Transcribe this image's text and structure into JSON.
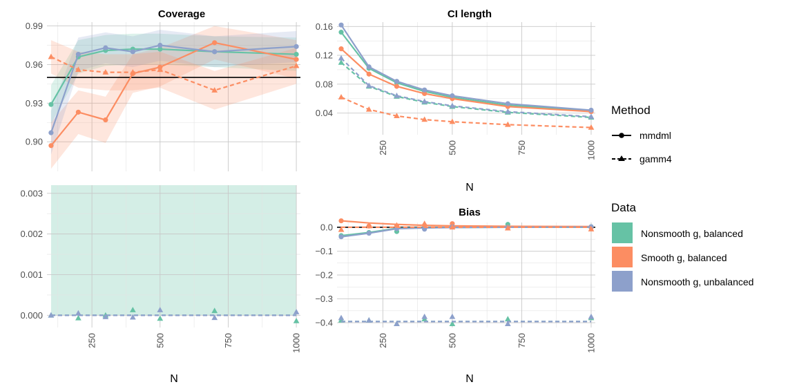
{
  "colors": {
    "nonsmooth_balanced": "#66C2A5",
    "smooth_balanced": "#FC8D62",
    "nonsmooth_unbalanced": "#8DA0CB"
  },
  "legend": {
    "method_title": "Method",
    "method_items": [
      {
        "label": "mmdml",
        "linetype": "solid",
        "shape": "circle"
      },
      {
        "label": "gamm4",
        "linetype": "dashed",
        "shape": "triangle"
      }
    ],
    "data_title": "Data",
    "data_items": [
      {
        "label": "Nonsmooth g, balanced",
        "color_key": "nonsmooth_balanced"
      },
      {
        "label": "Smooth g, balanced",
        "color_key": "smooth_balanced"
      },
      {
        "label": "Nonsmooth g, unbalanced",
        "color_key": "nonsmooth_unbalanced"
      }
    ]
  },
  "chart_data": [
    {
      "id": "coverage",
      "type": "line",
      "title": "Coverage",
      "xlabel": "",
      "ylabel": "",
      "xlim": [
        85,
        1015
      ],
      "ylim": [
        0.877,
        0.993
      ],
      "xticks": [
        250,
        500,
        750,
        1000
      ],
      "show_xticks": false,
      "yticks": [
        0.9,
        0.93,
        0.96,
        0.99
      ],
      "ytick_labels": [
        "0.90",
        "0.93",
        "0.96",
        "0.99"
      ],
      "hline": 0.95,
      "x": [
        100,
        200,
        300,
        400,
        500,
        700,
        1000
      ],
      "series": [
        {
          "key": "nonsmooth_balanced",
          "method": "mmdml",
          "values": [
            0.929,
            0.966,
            0.971,
            0.972,
            0.972,
            0.97,
            0.968
          ],
          "band": [
            [
              0.914,
              0.944
            ],
            [
              0.953,
              0.979
            ],
            [
              0.959,
              0.983
            ],
            [
              0.96,
              0.984
            ],
            [
              0.96,
              0.984
            ],
            [
              0.958,
              0.982
            ],
            [
              0.955,
              0.981
            ]
          ]
        },
        {
          "key": "smooth_balanced",
          "method": "mmdml",
          "values": [
            0.897,
            0.923,
            0.917,
            0.953,
            0.958,
            0.977,
            0.964
          ],
          "band": [
            [
              0.879,
              0.915
            ],
            [
              0.906,
              0.94
            ],
            [
              0.899,
              0.935
            ],
            [
              0.938,
              0.968
            ],
            [
              0.943,
              0.973
            ],
            [
              0.964,
              0.99
            ],
            [
              0.949,
              0.979
            ]
          ]
        },
        {
          "key": "nonsmooth_unbalanced",
          "method": "mmdml",
          "values": [
            0.907,
            0.968,
            0.973,
            0.97,
            0.975,
            0.97,
            0.974
          ],
          "band": [
            [
              0.89,
              0.924
            ],
            [
              0.955,
              0.981
            ],
            [
              0.961,
              0.985
            ],
            [
              0.958,
              0.982
            ],
            [
              0.963,
              0.987
            ],
            [
              0.958,
              0.982
            ],
            [
              0.962,
              0.986
            ]
          ]
        },
        {
          "key": "smooth_balanced",
          "method": "gamm4",
          "values": [
            0.966,
            0.956,
            0.954,
            0.954,
            0.956,
            0.94,
            0.959
          ],
          "band": [
            [
              0.953,
              0.979
            ],
            [
              0.942,
              0.97
            ],
            [
              0.94,
              0.968
            ],
            [
              0.94,
              0.968
            ],
            [
              0.942,
              0.97
            ],
            [
              0.925,
              0.955
            ],
            [
              0.945,
              0.973
            ]
          ]
        }
      ]
    },
    {
      "id": "ci_length",
      "type": "line",
      "title": "CI length",
      "xlabel": "N",
      "ylabel": "",
      "xlim": [
        85,
        1015
      ],
      "ylim": [
        0.01,
        0.166
      ],
      "xticks": [
        250,
        500,
        750,
        1000
      ],
      "show_xticks": true,
      "yticks": [
        0.04,
        0.08,
        0.12,
        0.16
      ],
      "ytick_labels": [
        "0.04",
        "0.08",
        "0.12",
        "0.16"
      ],
      "x": [
        100,
        200,
        300,
        400,
        500,
        700,
        1000
      ],
      "series": [
        {
          "key": "nonsmooth_balanced",
          "method": "mmdml",
          "values": [
            0.152,
            0.102,
            0.082,
            0.07,
            0.062,
            0.051,
            0.043
          ]
        },
        {
          "key": "smooth_balanced",
          "method": "mmdml",
          "values": [
            0.129,
            0.094,
            0.077,
            0.067,
            0.06,
            0.049,
            0.042
          ]
        },
        {
          "key": "nonsmooth_unbalanced",
          "method": "mmdml",
          "values": [
            0.162,
            0.104,
            0.084,
            0.072,
            0.064,
            0.053,
            0.044
          ]
        },
        {
          "key": "nonsmooth_balanced",
          "method": "gamm4",
          "values": [
            0.11,
            0.077,
            0.063,
            0.055,
            0.049,
            0.041,
            0.034
          ]
        },
        {
          "key": "smooth_balanced",
          "method": "gamm4",
          "values": [
            0.062,
            0.045,
            0.036,
            0.031,
            0.028,
            0.024,
            0.02
          ]
        },
        {
          "key": "nonsmooth_unbalanced",
          "method": "gamm4",
          "values": [
            0.116,
            0.078,
            0.064,
            0.056,
            0.05,
            0.042,
            0.035
          ]
        }
      ]
    },
    {
      "id": "coverage_zoom",
      "type": "line",
      "title": "",
      "xlabel": "N",
      "ylabel": "",
      "xlim": [
        85,
        1015
      ],
      "ylim": [
        -0.0003,
        0.0032
      ],
      "xticks": [
        250,
        500,
        750,
        1000
      ],
      "show_xticks": true,
      "yticks": [
        0.0,
        0.001,
        0.002,
        0.003
      ],
      "ytick_labels": [
        "0.000",
        "0.001",
        "0.002",
        "0.003"
      ],
      "shade": {
        "from": 0.0,
        "to": 0.0032,
        "color_key": "nonsmooth_balanced"
      },
      "x": [
        100,
        200,
        300,
        400,
        500,
        700,
        1000
      ],
      "series": [
        {
          "key": "nonsmooth_balanced",
          "method": "gamm4",
          "values": [
            0.0,
            0.0,
            0.0,
            0.0,
            0.0,
            0.0,
            0.0
          ],
          "points": [
            0.0,
            -7e-05,
            0.0,
            0.00013,
            -8e-05,
            0.00011,
            -0.00014
          ]
        },
        {
          "key": "nonsmooth_unbalanced",
          "method": "gamm4",
          "values": [
            0.0,
            0.0,
            0.0,
            0.0,
            0.0,
            0.0,
            0.0
          ],
          "points": [
            0.0,
            5e-05,
            -4e-05,
            -5e-05,
            0.00013,
            -6e-05,
            8e-05
          ]
        }
      ]
    },
    {
      "id": "bias",
      "type": "line",
      "title": "Bias",
      "xlabel": "N",
      "ylabel": "",
      "xlim": [
        85,
        1015
      ],
      "ylim": [
        -0.42,
        0.02
      ],
      "xticks": [
        250,
        500,
        750,
        1000
      ],
      "show_xticks": true,
      "yticks": [
        0.0,
        -0.1,
        -0.2,
        -0.3,
        -0.4
      ],
      "ytick_labels": [
        "0.0",
        "−0.1",
        "−0.2",
        "−0.3",
        "−0.4"
      ],
      "hline": 0.0,
      "x": [
        100,
        200,
        300,
        400,
        500,
        700,
        1000
      ],
      "series": [
        {
          "key": "nonsmooth_balanced",
          "method": "mmdml",
          "values": [
            -0.035,
            -0.022,
            -0.004,
            -0.002,
            -0.001,
            0.0,
            0.0
          ],
          "points": [
            -0.035,
            -0.022,
            -0.018,
            -0.005,
            0.002,
            0.012,
            0.002
          ]
        },
        {
          "key": "smooth_balanced",
          "method": "mmdml",
          "values": [
            0.027,
            0.018,
            0.012,
            0.008,
            0.006,
            0.004,
            0.003
          ],
          "points": [
            0.027,
            0.005,
            0.005,
            0.008,
            0.015,
            0.0,
            -0.002
          ]
        },
        {
          "key": "nonsmooth_unbalanced",
          "method": "mmdml",
          "values": [
            -0.04,
            -0.025,
            -0.006,
            -0.003,
            -0.001,
            0.0,
            0.001
          ],
          "points": [
            -0.04,
            -0.025,
            -0.006,
            -0.008,
            0.002,
            -0.001,
            0.002
          ]
        },
        {
          "key": "nonsmooth_balanced",
          "method": "gamm4",
          "values": [
            -0.395,
            -0.395,
            -0.395,
            -0.395,
            -0.395,
            -0.395,
            -0.395
          ],
          "points": [
            -0.39,
            -0.39,
            -0.405,
            -0.385,
            -0.405,
            -0.385,
            -0.38
          ]
        },
        {
          "key": "smooth_balanced",
          "method": "gamm4",
          "values": [
            0.0,
            0.0,
            0.0,
            0.0,
            0.0,
            0.0,
            0.0
          ],
          "points": [
            -0.01,
            0.005,
            0.008,
            0.015,
            0.0,
            -0.004,
            -0.008
          ]
        },
        {
          "key": "nonsmooth_unbalanced",
          "method": "gamm4",
          "values": [
            -0.395,
            -0.395,
            -0.395,
            -0.395,
            -0.395,
            -0.395,
            -0.395
          ],
          "points": [
            -0.38,
            -0.39,
            -0.405,
            -0.375,
            -0.375,
            -0.405,
            -0.375
          ]
        }
      ]
    }
  ]
}
